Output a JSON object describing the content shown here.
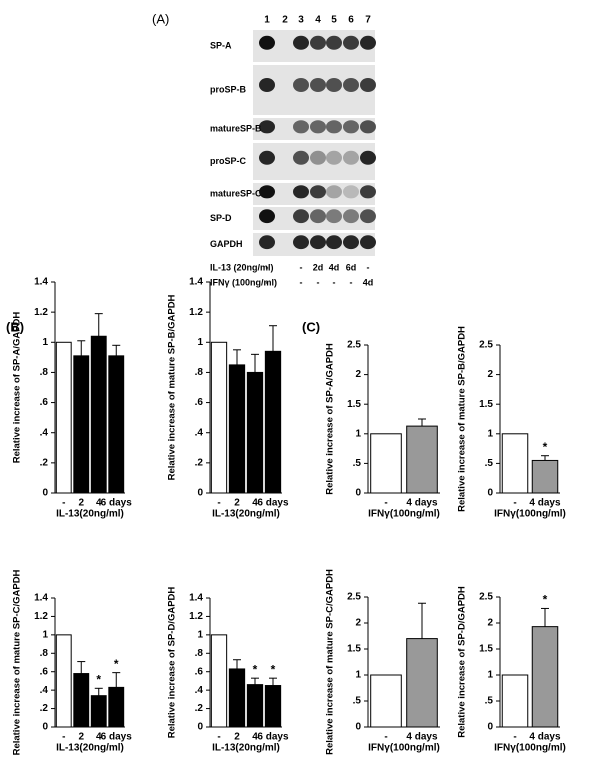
{
  "panel_a": {
    "label": "(A)",
    "lanes": [
      "1",
      "2",
      "3",
      "4",
      "5",
      "6",
      "7"
    ],
    "rows": [
      "SP-A",
      "proSP-B",
      "matureSP-B",
      "proSP-C",
      "matureSP-C",
      "SP-D",
      "GAPDH"
    ],
    "treatments": [
      {
        "name": "IL-13 (20ng/ml)",
        "lanes": [
          "-",
          null,
          "-",
          "2d",
          "4d",
          "6d",
          "-"
        ]
      },
      {
        "name": "IFNγ  (100ng/ml)",
        "lanes": [
          "-",
          null,
          "-",
          "-",
          "-",
          "-",
          "4d"
        ]
      }
    ]
  },
  "panel_labels": [
    "(B)",
    "(C)"
  ],
  "chart_data": [
    {
      "type": "bar",
      "ylabel": "Relative increase of SP-A/GAPDH",
      "xlabel": "IL-13(20ng/ml)",
      "categories": [
        "-",
        "2",
        "4",
        "6 days"
      ],
      "values": [
        1,
        0.91,
        1.04,
        0.91
      ],
      "errors": [
        null,
        0.1,
        0.15,
        0.07
      ],
      "annotations": [
        null,
        null,
        null,
        null
      ],
      "colors": [
        "#ffffff",
        "#000000",
        "#000000",
        "#000000"
      ],
      "ylim": [
        0,
        1.4
      ],
      "yticks": [
        0,
        {
          "value": 0.2,
          "label": ".2"
        },
        {
          "value": 0.4,
          "label": ".4"
        },
        {
          "value": 0.6,
          "label": ".6"
        },
        {
          "value": 0.8,
          "label": ".8"
        },
        1,
        1.2,
        1.4
      ]
    },
    {
      "type": "bar",
      "ylabel": "Relative increase of mature SP-B/GAPDH",
      "xlabel": "IL-13(20ng/ml)",
      "categories": [
        "-",
        "2",
        "4",
        "6 days"
      ],
      "values": [
        1,
        0.85,
        0.8,
        0.94
      ],
      "errors": [
        null,
        0.1,
        0.12,
        0.17
      ],
      "annotations": [
        null,
        null,
        null,
        null
      ],
      "colors": [
        "#ffffff",
        "#000000",
        "#000000",
        "#000000"
      ],
      "ylim": [
        0,
        1.4
      ],
      "yticks": [
        0,
        {
          "value": 0.2,
          "label": ".2"
        },
        {
          "value": 0.4,
          "label": ".4"
        },
        {
          "value": 0.6,
          "label": ".6"
        },
        {
          "value": 0.8,
          "label": ".8"
        },
        1,
        1.2,
        1.4
      ]
    },
    {
      "type": "bar",
      "ylabel": "Relative increase of SP-A/GAPDH",
      "xlabel": "IFNγ(100ng/ml)",
      "categories": [
        "-",
        "4 days"
      ],
      "values": [
        1,
        1.13
      ],
      "errors": [
        null,
        0.12
      ],
      "annotations": [
        null,
        null
      ],
      "colors": [
        "#ffffff",
        "#999999"
      ],
      "ylim": [
        0,
        2.5
      ],
      "yticks": [
        0,
        {
          "value": 0.5,
          "label": ".5"
        },
        1,
        1.5,
        2,
        2.5
      ]
    },
    {
      "type": "bar",
      "ylabel": "Relative increase of mature SP-B/GAPDH",
      "xlabel": "IFNγ(100ng/ml)",
      "categories": [
        "-",
        "4 days"
      ],
      "values": [
        1,
        0.55
      ],
      "errors": [
        null,
        0.08
      ],
      "annotations": [
        null,
        "*"
      ],
      "colors": [
        "#ffffff",
        "#999999"
      ],
      "ylim": [
        0,
        2.5
      ],
      "yticks": [
        0,
        {
          "value": 0.5,
          "label": ".5"
        },
        1,
        1.5,
        2,
        2.5
      ]
    },
    {
      "type": "bar",
      "ylabel": "Relative increase of mature SP-C/GAPDH",
      "xlabel": "IL-13(20ng/ml)",
      "categories": [
        "-",
        "2",
        "4",
        "6 days"
      ],
      "values": [
        1,
        0.58,
        0.34,
        0.43
      ],
      "errors": [
        null,
        0.13,
        0.08,
        0.16
      ],
      "annotations": [
        null,
        null,
        "*",
        "*"
      ],
      "colors": [
        "#ffffff",
        "#000000",
        "#000000",
        "#000000"
      ],
      "ylim": [
        0,
        1.4
      ],
      "yticks": [
        0,
        {
          "value": 0.2,
          "label": ".2"
        },
        {
          "value": 0.4,
          "label": ".4"
        },
        {
          "value": 0.6,
          "label": ".6"
        },
        {
          "value": 0.8,
          "label": ".8"
        },
        1,
        1.2,
        1.4
      ]
    },
    {
      "type": "bar",
      "ylabel": "Relative increase of SP-D/GAPDH",
      "xlabel": "IL-13(20ng/ml)",
      "categories": [
        "-",
        "2",
        "4",
        "6 days"
      ],
      "values": [
        1,
        0.63,
        0.46,
        0.45
      ],
      "errors": [
        null,
        0.1,
        0.07,
        0.08
      ],
      "annotations": [
        null,
        null,
        "*",
        "*"
      ],
      "colors": [
        "#ffffff",
        "#000000",
        "#000000",
        "#000000"
      ],
      "ylim": [
        0,
        1.4
      ],
      "yticks": [
        0,
        {
          "value": 0.2,
          "label": ".2"
        },
        {
          "value": 0.4,
          "label": ".4"
        },
        {
          "value": 0.6,
          "label": ".6"
        },
        {
          "value": 0.8,
          "label": ".8"
        },
        1,
        1.2,
        1.4
      ]
    },
    {
      "type": "bar",
      "ylabel": "Relative increase of mature SP-C/GAPDH",
      "xlabel": "IFNγ(100ng/ml)",
      "categories": [
        "-",
        "4 days"
      ],
      "values": [
        1,
        1.7
      ],
      "errors": [
        null,
        0.68
      ],
      "annotations": [
        null,
        null
      ],
      "colors": [
        "#ffffff",
        "#999999"
      ],
      "ylim": [
        0,
        2.5
      ],
      "yticks": [
        0,
        {
          "value": 0.5,
          "label": ".5"
        },
        1,
        1.5,
        2,
        2.5
      ]
    },
    {
      "type": "bar",
      "ylabel": "Relative increase of SP-D/GAPDH",
      "xlabel": "IFNγ(100ng/ml)",
      "categories": [
        "-",
        "4 days"
      ],
      "values": [
        1,
        1.93
      ],
      "errors": [
        null,
        0.35
      ],
      "annotations": [
        null,
        "*"
      ],
      "colors": [
        "#ffffff",
        "#999999"
      ],
      "ylim": [
        0,
        2.5
      ],
      "yticks": [
        0,
        {
          "value": 0.5,
          "label": ".5"
        },
        1,
        1.5,
        2,
        2.5
      ]
    }
  ]
}
